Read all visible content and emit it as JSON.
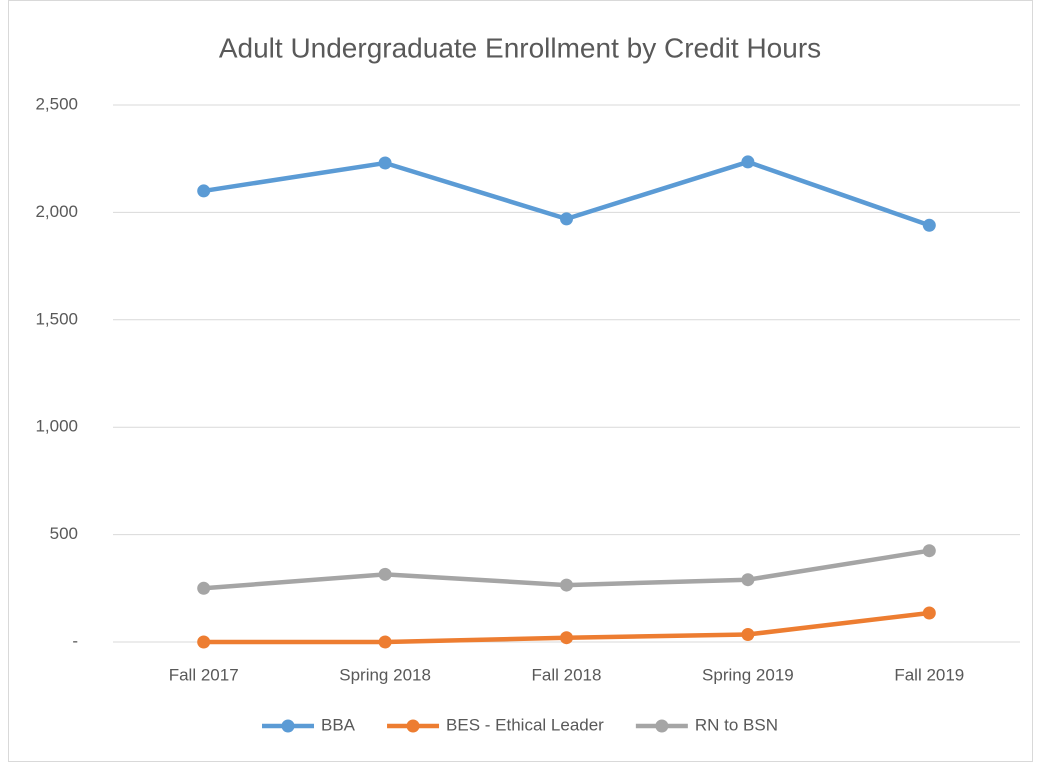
{
  "chart_data": {
    "type": "line",
    "title": "Adult Undergraduate Enrollment by Credit Hours",
    "categories": [
      "Fall 2017",
      "Spring 2018",
      "Fall 2018",
      "Spring 2019",
      "Fall 2019"
    ],
    "series": [
      {
        "name": "BBA",
        "color": "#5b9bd5",
        "values": [
          2100,
          2230,
          1970,
          2235,
          1940
        ]
      },
      {
        "name": "BES - Ethical Leader",
        "color": "#ed7d31",
        "values": [
          0,
          0,
          20,
          35,
          135
        ]
      },
      {
        "name": "RN to BSN",
        "color": "#a5a5a5",
        "values": [
          250,
          315,
          265,
          290,
          425
        ]
      }
    ],
    "ylim": [
      0,
      2500
    ],
    "yticks": [
      {
        "value": 0,
        "label": "-"
      },
      {
        "value": 500,
        "label": "500"
      },
      {
        "value": 1000,
        "label": "1,000"
      },
      {
        "value": 1500,
        "label": "1,500"
      },
      {
        "value": 2000,
        "label": "2,000"
      },
      {
        "value": 2500,
        "label": "2,500"
      }
    ],
    "grid": true,
    "legend": "bottom"
  }
}
